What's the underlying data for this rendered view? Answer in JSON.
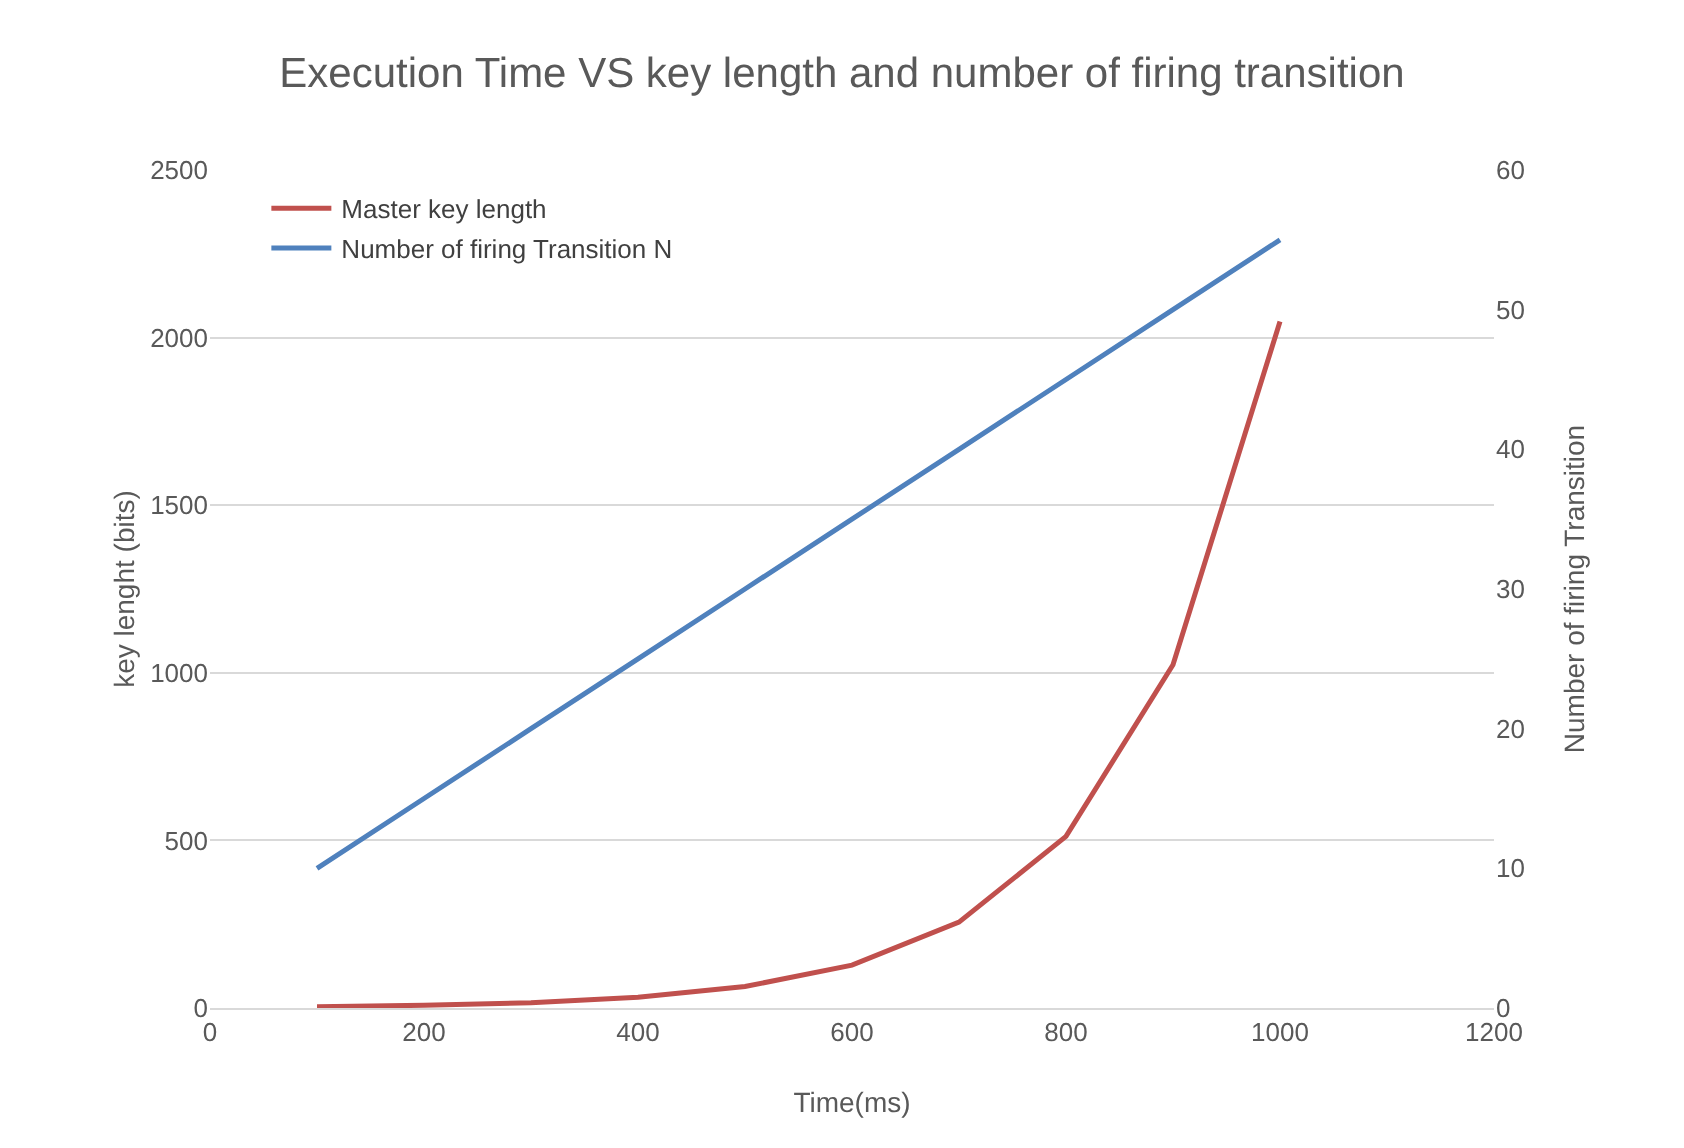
{
  "chart_data": {
    "type": "line",
    "title": "Execution Time VS key length and number of firing transition",
    "xlabel": "Time(ms)",
    "ylabel": "key lenght (bits)",
    "y2label": "Number of firing Transition",
    "x": [
      100,
      200,
      300,
      400,
      500,
      600,
      700,
      800,
      900,
      1000
    ],
    "series": [
      {
        "name": "Master key length",
        "color": "#c0504d",
        "values": [
          4,
          8,
          16,
          32,
          64,
          128,
          256,
          512,
          1024,
          2048
        ]
      },
      {
        "name": "Number of firing Transition N",
        "color": "#4f81bd",
        "axis": "y2",
        "values": [
          10,
          15,
          20,
          25,
          30,
          35,
          40,
          45,
          50,
          55
        ]
      }
    ],
    "xlim": [
      0,
      1200
    ],
    "xticks": [
      0,
      200,
      400,
      600,
      800,
      1000,
      1200
    ],
    "ylim": [
      0,
      2500
    ],
    "yticks": [
      0,
      500,
      1000,
      1500,
      2000,
      2500
    ],
    "y2lim": [
      0,
      60
    ],
    "y2ticks": [
      0,
      10,
      20,
      30,
      40,
      50,
      60
    ],
    "grid": "y",
    "legend": "top left",
    "marker": "none",
    "line_style": "solid"
  }
}
